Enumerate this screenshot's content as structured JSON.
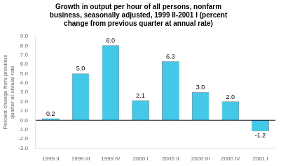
{
  "chart_data": {
    "type": "bar",
    "title": [
      "Growth in output per hour of all persons, nonfarm",
      "business, seasonally adjusted, 1999 II-2001 I (percent",
      "change from previous quarter at annual rate)"
    ],
    "ylabel": [
      "Percent change from previous",
      "quarter at annual rate"
    ],
    "categories": [
      "1999 II",
      "1999 III",
      "1999 IV",
      "2000 I",
      "2000 II",
      "2000 III",
      "2000 IV",
      "2001 I"
    ],
    "values": [
      0.2,
      5.0,
      8.0,
      2.1,
      6.3,
      3.0,
      2.0,
      -1.2
    ],
    "value_labels": [
      "0.2",
      "5.0",
      "8.0",
      "2.1",
      "6.3",
      "3.0",
      "2.0",
      "-1.2"
    ],
    "color": "#44C8E8",
    "ylim": [
      -3.0,
      9.0
    ],
    "yticks": [
      {
        "value": -3,
        "label": "-3.0"
      },
      {
        "value": -2,
        "label": "-2.0"
      },
      {
        "value": -1,
        "label": "-1.0"
      },
      {
        "value": 0,
        "label": "0.0"
      },
      {
        "value": 1,
        "label": "1.0"
      },
      {
        "value": 2,
        "label": "2.0"
      },
      {
        "value": 3,
        "label": "3.0"
      },
      {
        "value": 4,
        "label": "4.0"
      },
      {
        "value": 5,
        "label": "5.0"
      },
      {
        "value": 6,
        "label": "6.0"
      },
      {
        "value": 7,
        "label": "7.0"
      },
      {
        "value": 8,
        "label": "8.0"
      },
      {
        "value": 9,
        "label": "9.0"
      }
    ],
    "grid": false,
    "data_labels": true
  }
}
